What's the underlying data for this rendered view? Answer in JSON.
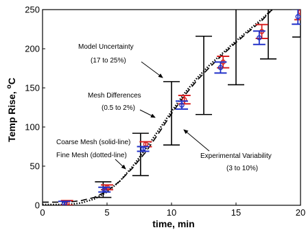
{
  "chart_data": {
    "type": "line",
    "xlabel": "time, min",
    "ylabel_main": "Temp Rise, ",
    "ylabel_sup": "o",
    "ylabel_unit": "C",
    "xlim": [
      0,
      20
    ],
    "ylim": [
      0,
      250
    ],
    "x_ticks": [
      0,
      5,
      10,
      15,
      20
    ],
    "y_ticks": [
      0,
      50,
      100,
      150,
      200,
      250
    ],
    "grid": false,
    "series": [
      {
        "style": "solid",
        "color": "#000000",
        "x": [
          0,
          2,
          3,
          4,
          5,
          6,
          7,
          8,
          9,
          10,
          11,
          12,
          13,
          14,
          15,
          16,
          17,
          17.8
        ],
        "y": [
          4,
          4,
          6,
          10,
          18,
          31,
          48,
          68,
          92,
          117,
          140,
          160,
          177,
          193,
          208,
          222,
          236,
          250
        ]
      },
      {
        "style": "dotted",
        "color": "#000000",
        "x": [
          0,
          2,
          3,
          4,
          5,
          6,
          7,
          8,
          9,
          10,
          11,
          12,
          13,
          14,
          15,
          16,
          17,
          17.8
        ],
        "y": [
          1,
          1,
          3,
          8,
          17,
          31,
          50,
          72,
          96,
          120,
          143,
          163,
          180,
          195,
          210,
          224,
          238,
          250
        ]
      }
    ],
    "model_uncertainty_bars": [
      {
        "x": 4.7,
        "low": 10,
        "high": 30
      },
      {
        "x": 7.6,
        "low": 38,
        "high": 92
      },
      {
        "x": 10.0,
        "low": 77,
        "high": 158
      },
      {
        "x": 12.5,
        "low": 116,
        "high": 216
      },
      {
        "x": 15.0,
        "low": 154,
        "high": 265
      },
      {
        "x": 17.5,
        "low": 187,
        "high": 290
      },
      {
        "x": 20.0,
        "low": 215,
        "high": 300
      }
    ],
    "coarse_mesh_points": {
      "color": "#d62020",
      "x": [
        1.9,
        5.0,
        8.0,
        11.0,
        14.0,
        17.0,
        20.0
      ],
      "y": [
        3,
        23,
        78,
        135,
        183,
        222,
        247
      ]
    },
    "fine_mesh_points": {
      "color": "#2030c8",
      "x": [
        1.7,
        4.8,
        7.8,
        10.8,
        13.8,
        16.8,
        19.8
      ],
      "y": [
        2,
        20,
        72,
        128,
        176,
        214,
        241
      ]
    },
    "annotations": [
      {
        "id": "model-uncertainty",
        "lines": [
          "Model Uncertainty",
          "(17 to 25%)"
        ]
      },
      {
        "id": "mesh-differences",
        "lines": [
          "Mesh Differences",
          "(0.5 to 2%)"
        ]
      },
      {
        "id": "mesh-legend",
        "lines": [
          "Coarse Mesh (solid-line)",
          "Fine Mesh (dotted-line)"
        ]
      },
      {
        "id": "experimental-variability",
        "lines": [
          "Experimental Variability",
          "(3 to 10%)"
        ]
      }
    ]
  }
}
